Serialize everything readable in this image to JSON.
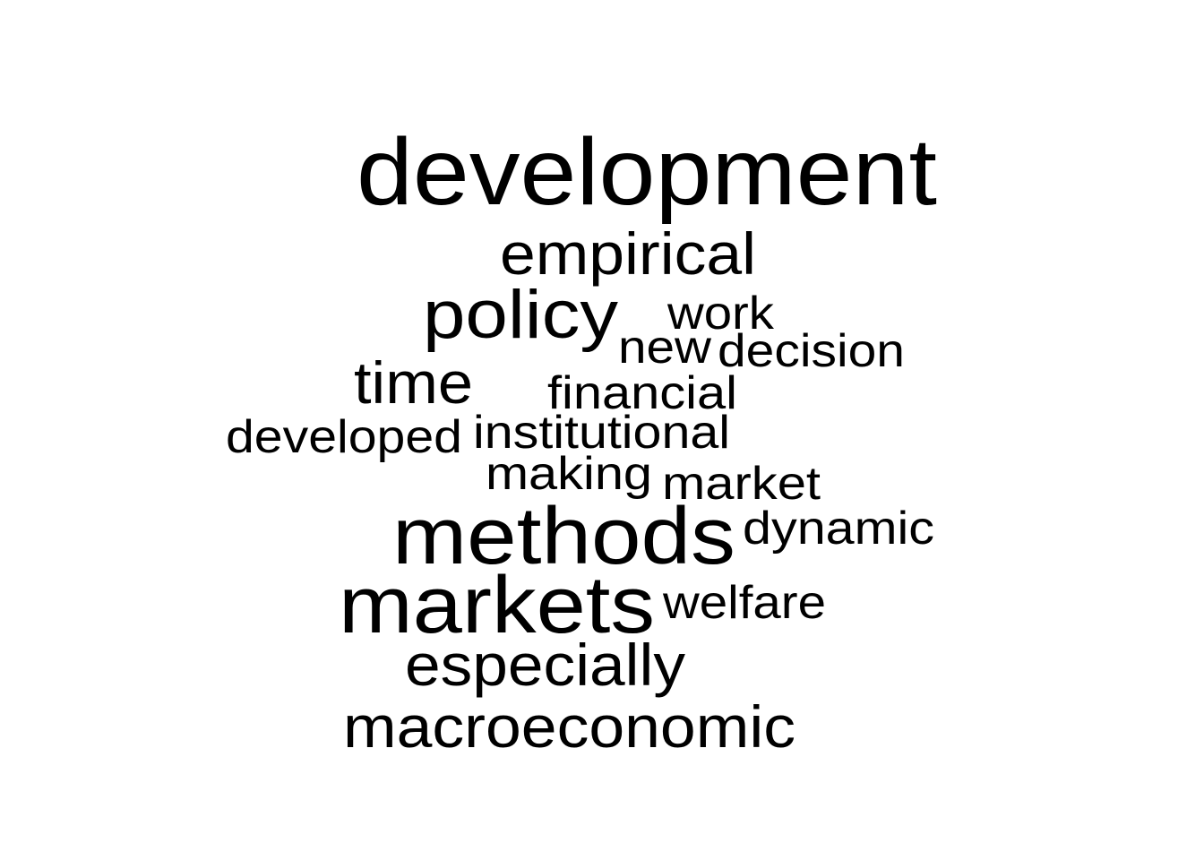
{
  "words": [
    "development",
    "empirical",
    "policy",
    "work",
    "new",
    "decision",
    "time",
    "financial",
    "developed",
    "institutional",
    "making",
    "market",
    "methods",
    "dynamic",
    "markets",
    "welfare",
    "especially",
    "macroeconomic"
  ]
}
